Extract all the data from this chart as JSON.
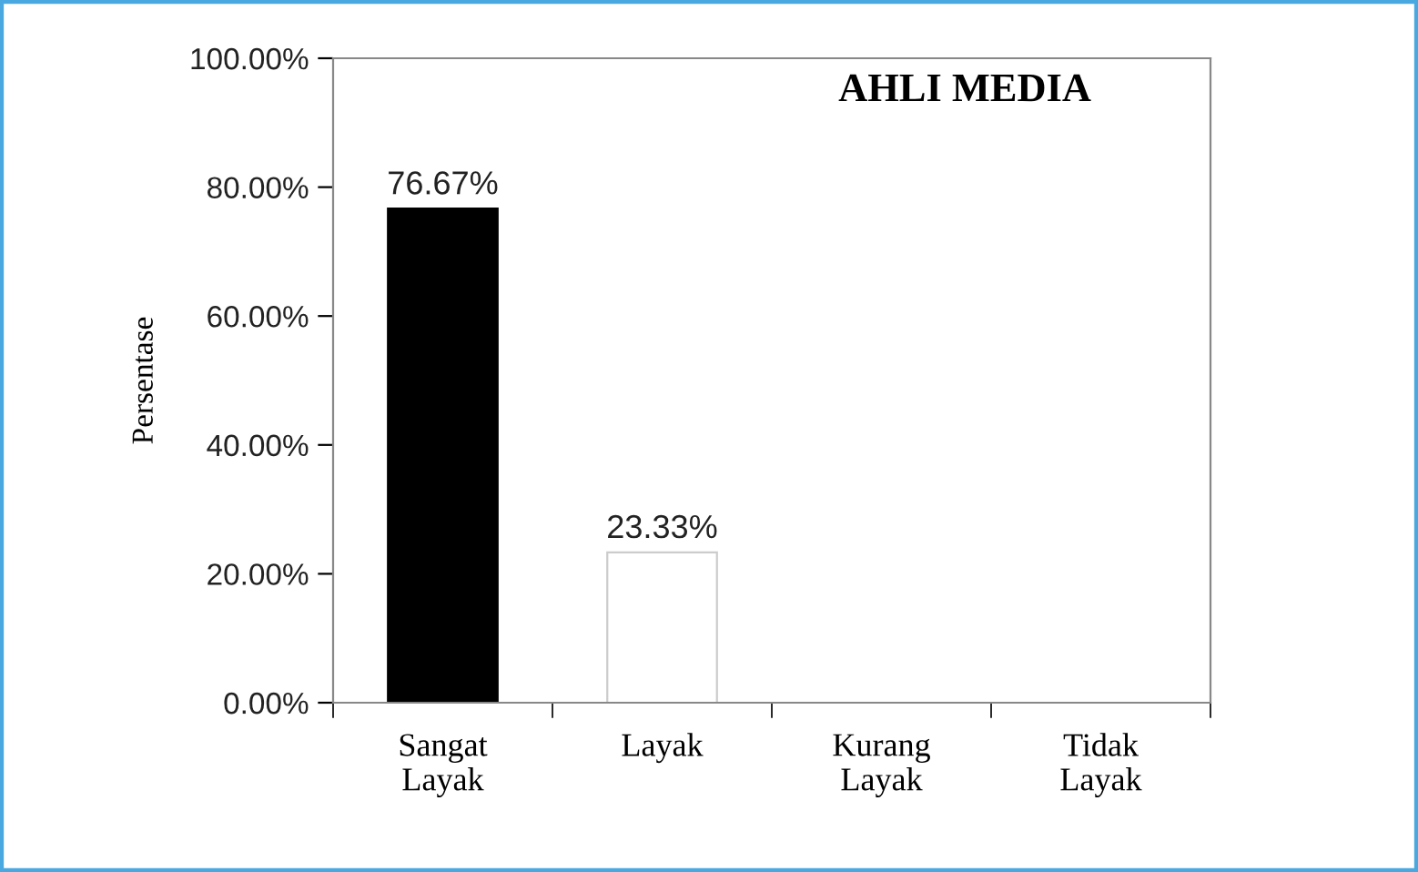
{
  "chart_data": {
    "type": "bar",
    "title": "AHLI MEDIA",
    "ylabel": "Persentase",
    "categories": [
      "Sangat\nLayak",
      "Layak",
      "Kurang\nLayak",
      "Tidak\nLayak"
    ],
    "values": [
      76.67,
      23.33,
      0,
      0
    ],
    "colors": [
      "#000000",
      "#ffffff",
      "#000000",
      "#000000"
    ],
    "value_labels": [
      "76.67%",
      "23.33%",
      null,
      null
    ],
    "ylim": [
      0,
      100
    ],
    "yticks": [
      {
        "value": 0,
        "label": "0.00%"
      },
      {
        "value": 20,
        "label": "20.00%"
      },
      {
        "value": 40,
        "label": "40.00%"
      },
      {
        "value": 60,
        "label": "60.00%"
      },
      {
        "value": 80,
        "label": "80.00%"
      },
      {
        "value": 100,
        "label": "100.00%"
      }
    ],
    "grid": false,
    "legend": false
  }
}
